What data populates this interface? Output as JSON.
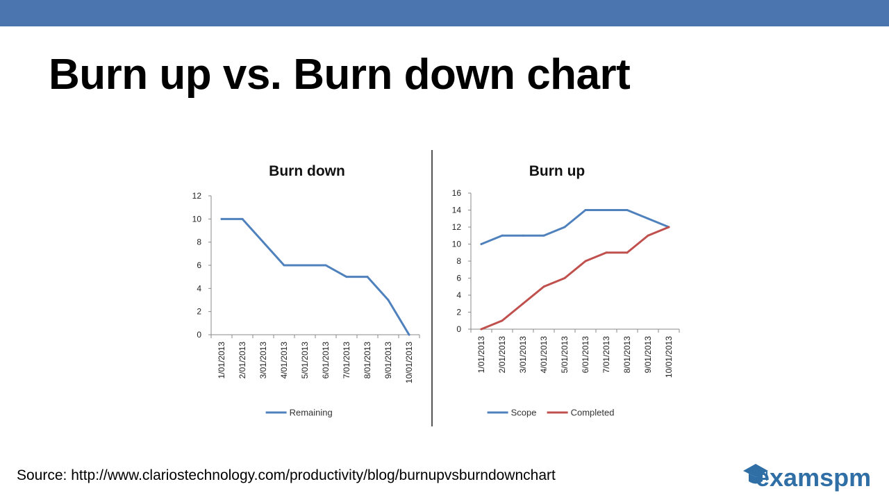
{
  "slide": {
    "title": "Burn up vs. Burn down chart",
    "source": "Source: http://www.clariostechnology.com/productivity/blog/burnupvsburndownchart",
    "logo_text": "examspm"
  },
  "colors": {
    "topbar": "#4a75ae",
    "scope": "#4f81bd",
    "completed": "#c0504d",
    "remaining": "#4f81bd"
  },
  "chart_data": [
    {
      "type": "line",
      "title": "Burn down",
      "categories": [
        "1/01/2013",
        "2/01/2013",
        "3/01/2013",
        "4/01/2013",
        "5/01/2013",
        "6/01/2013",
        "7/01/2013",
        "8/01/2013",
        "9/01/2013",
        "10/01/2013"
      ],
      "series": [
        {
          "name": "Remaining",
          "values": [
            10,
            10,
            8,
            6,
            6,
            6,
            5,
            5,
            3,
            0
          ],
          "color": "#4f81bd"
        }
      ],
      "ylim": [
        0,
        12
      ],
      "yticks": [
        0,
        2,
        4,
        6,
        8,
        10,
        12
      ],
      "xlabel": "",
      "ylabel": "",
      "grid": false,
      "legend": "bottom"
    },
    {
      "type": "line",
      "title": "Burn up",
      "categories": [
        "1/01/2013",
        "2/01/2013",
        "3/01/2013",
        "4/01/2013",
        "5/01/2013",
        "6/01/2013",
        "7/01/2013",
        "8/01/2013",
        "9/01/2013",
        "10/01/2013"
      ],
      "series": [
        {
          "name": "Scope",
          "values": [
            10,
            11,
            11,
            11,
            12,
            14,
            14,
            14,
            13,
            12
          ],
          "color": "#4f81bd"
        },
        {
          "name": "Completed",
          "values": [
            0,
            1,
            3,
            5,
            6,
            8,
            9,
            9,
            11,
            12
          ],
          "color": "#c0504d"
        }
      ],
      "ylim": [
        0,
        16
      ],
      "yticks": [
        0,
        2,
        4,
        6,
        8,
        10,
        12,
        14,
        16
      ],
      "xlabel": "",
      "ylabel": "",
      "grid": false,
      "legend": "bottom"
    }
  ]
}
